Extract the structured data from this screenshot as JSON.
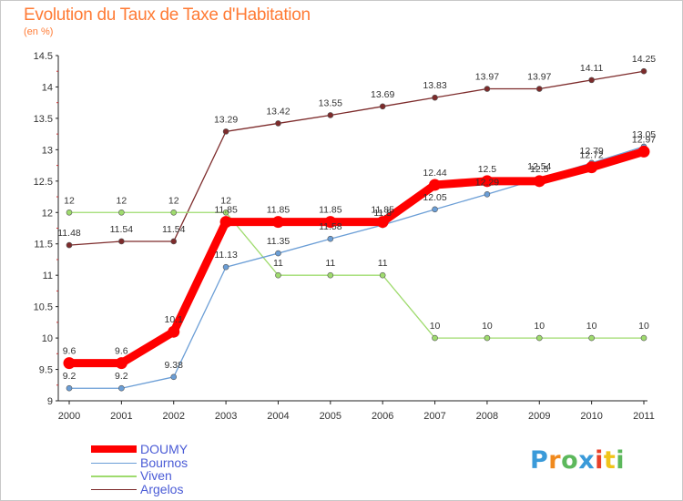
{
  "header": {
    "title": "Evolution du Taux de Taxe d'Habitation",
    "unit": "(en %)"
  },
  "brand": {
    "logo_text": "Proxiti",
    "logo_colors": [
      "#3a9ad9",
      "#f08a1e",
      "#5cb85c",
      "#3a9ad9",
      "#e8402a",
      "#f0c419",
      "#5cb85c"
    ]
  },
  "chart_data": {
    "type": "line",
    "categories": [
      "2000",
      "2001",
      "2002",
      "2003",
      "2004",
      "2005",
      "2006",
      "2007",
      "2008",
      "2009",
      "2010",
      "2011"
    ],
    "ylim": [
      9,
      14.5
    ],
    "yticks": [
      "9",
      "9.5",
      "10",
      "10.5",
      "11",
      "11.5",
      "12",
      "12.5",
      "13",
      "13.5",
      "14",
      "14.5"
    ],
    "grid": false,
    "legend_position": "bottom-left",
    "series": [
      {
        "name": "DOUMY",
        "color": "#ff0000",
        "values": [
          9.6,
          9.6,
          10.1,
          11.85,
          11.85,
          11.85,
          11.85,
          12.44,
          12.5,
          12.5,
          12.72,
          12.97
        ],
        "labels": [
          "9.6",
          "9.6",
          "10.1",
          "11.85",
          "11.85",
          "11.85",
          "11.85",
          "12.44",
          "12.5",
          "12.5",
          "12.72",
          "12.97"
        ]
      },
      {
        "name": "Bournos",
        "color": "#6b9ed6",
        "values": [
          9.2,
          9.2,
          9.38,
          11.13,
          11.35,
          11.58,
          11.8,
          12.05,
          12.29,
          12.54,
          12.79,
          13.05
        ],
        "labels": [
          "9.2",
          "9.2",
          "9.38",
          "11.13",
          "11.35",
          "11.58",
          "11.8",
          "12.05",
          "12.29",
          "12.54",
          "12.79",
          "13.05"
        ]
      },
      {
        "name": "Viven",
        "color": "#9fdb6e",
        "values": [
          12,
          12,
          12,
          12,
          11,
          11,
          11,
          10,
          10,
          10,
          10,
          10
        ],
        "labels": [
          "12",
          "12",
          "12",
          "12",
          "11",
          "11",
          "11",
          "10",
          "10",
          "10",
          "10",
          "10"
        ]
      },
      {
        "name": "Argelos",
        "color": "#7d2b2b",
        "values": [
          11.48,
          11.54,
          11.54,
          13.29,
          13.42,
          13.55,
          13.69,
          13.83,
          13.97,
          13.97,
          14.11,
          14.25
        ],
        "labels": [
          "11.48",
          "11.54",
          "11.54",
          "13.29",
          "13.42",
          "13.55",
          "13.69",
          "13.83",
          "13.97",
          "13.97",
          "14.11",
          "14.25"
        ]
      }
    ]
  }
}
